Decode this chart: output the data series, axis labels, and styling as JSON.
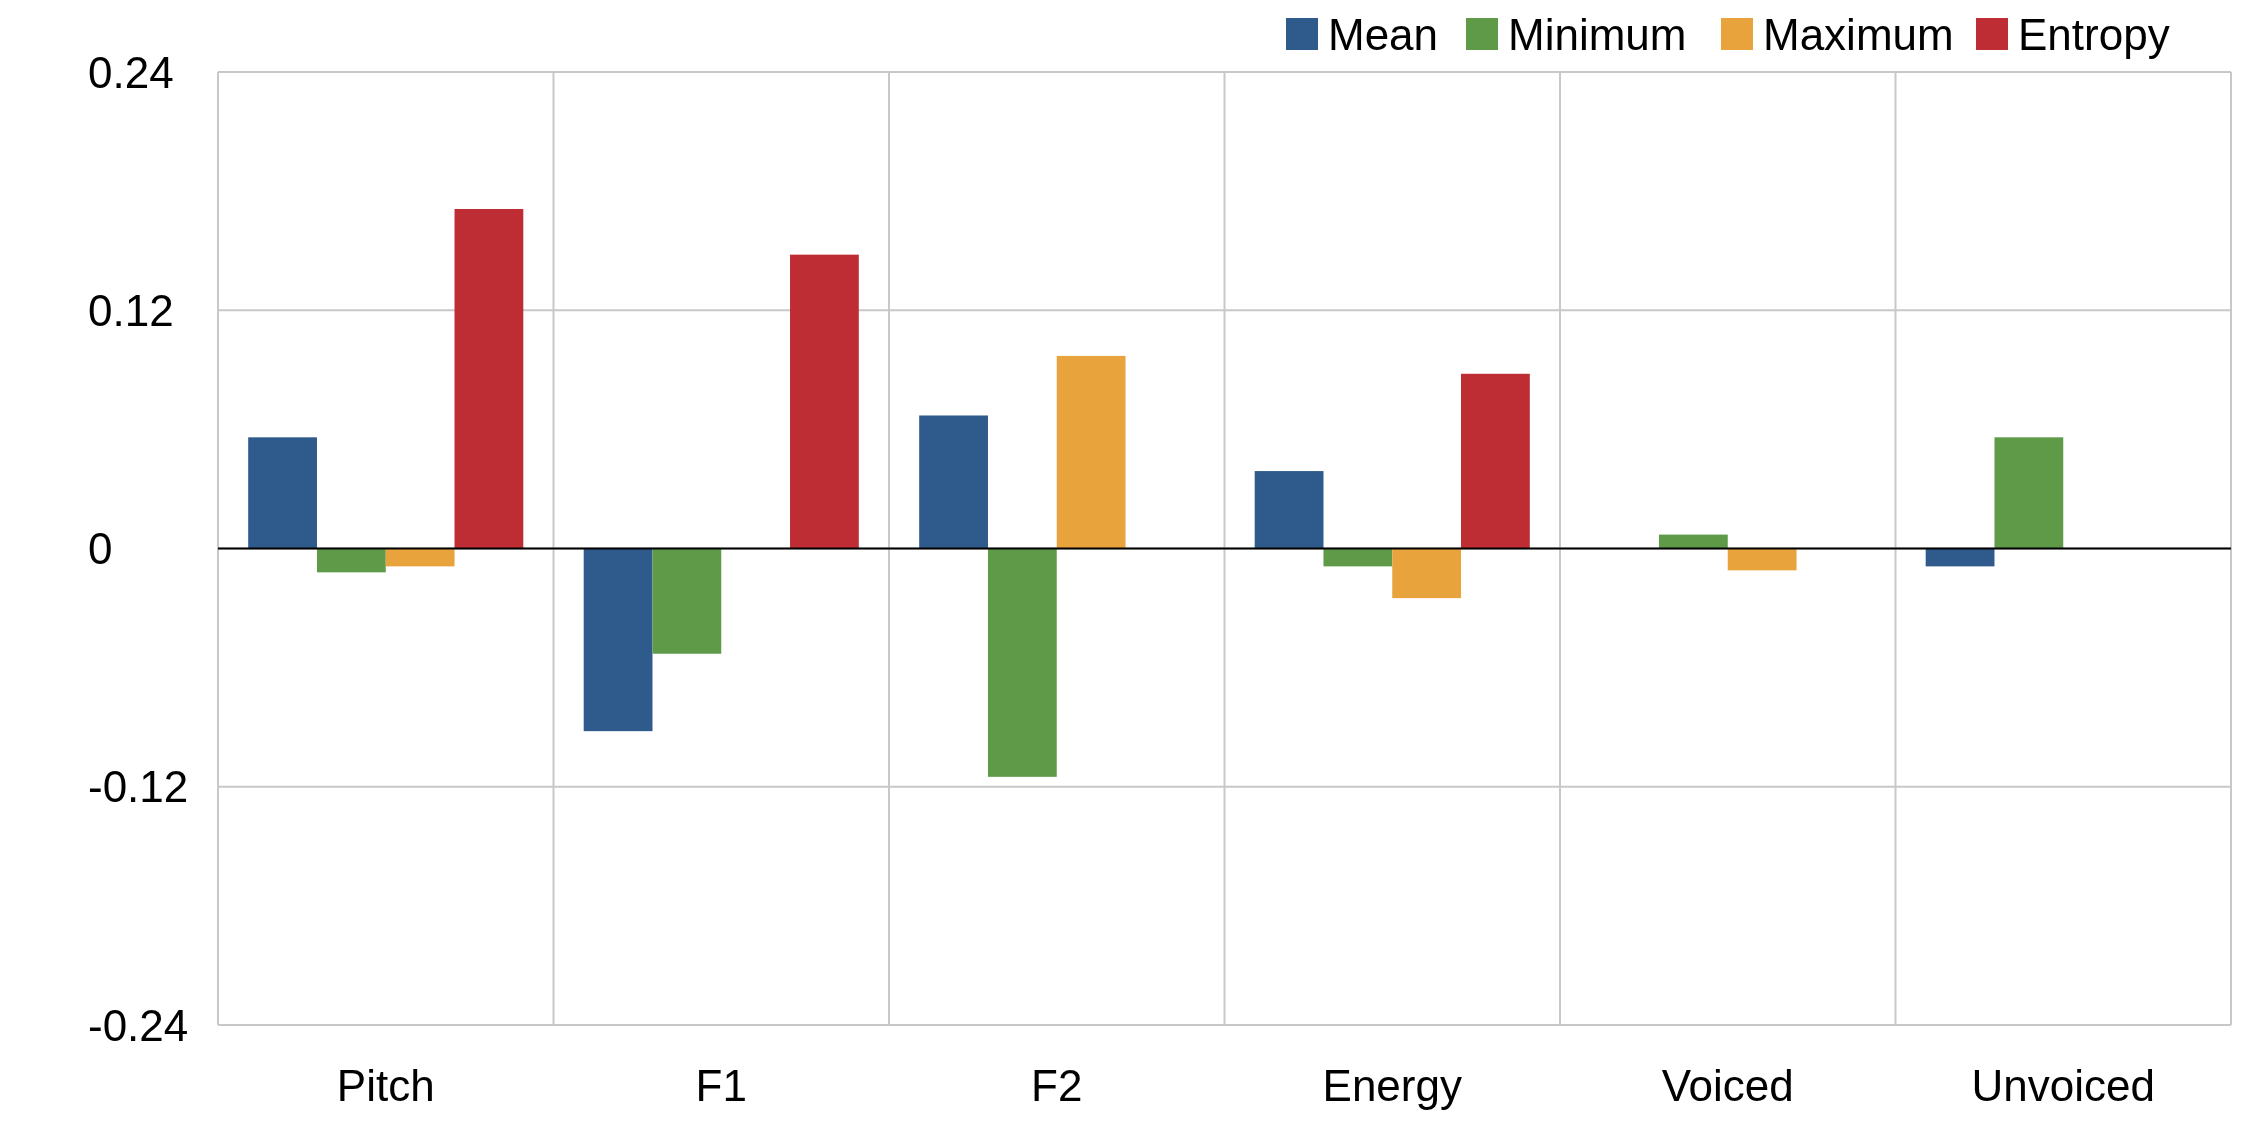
{
  "chart_data": {
    "type": "bar",
    "categories": [
      "Pitch",
      "F1",
      "F2",
      "Energy",
      "Voiced",
      "Unvoiced"
    ],
    "series": [
      {
        "name": "Mean",
        "color": "#2e5a8c",
        "values": [
          0.056,
          -0.092,
          0.067,
          0.039,
          null,
          -0.009
        ]
      },
      {
        "name": "Minimum",
        "color": "#5e9a48",
        "values": [
          -0.012,
          -0.053,
          -0.115,
          -0.009,
          0.007,
          0.056
        ]
      },
      {
        "name": "Maximum",
        "color": "#e8a33c",
        "values": [
          -0.009,
          null,
          0.097,
          -0.025,
          -0.011,
          null
        ]
      },
      {
        "name": "Entropy",
        "color": "#be2d33",
        "values": [
          0.171,
          0.148,
          null,
          0.088,
          null,
          null
        ]
      }
    ],
    "ylim": [
      -0.24,
      0.24
    ],
    "yticks": [
      -0.24,
      -0.12,
      0,
      0.12,
      0.24
    ],
    "grid": true,
    "legend": "top right"
  }
}
